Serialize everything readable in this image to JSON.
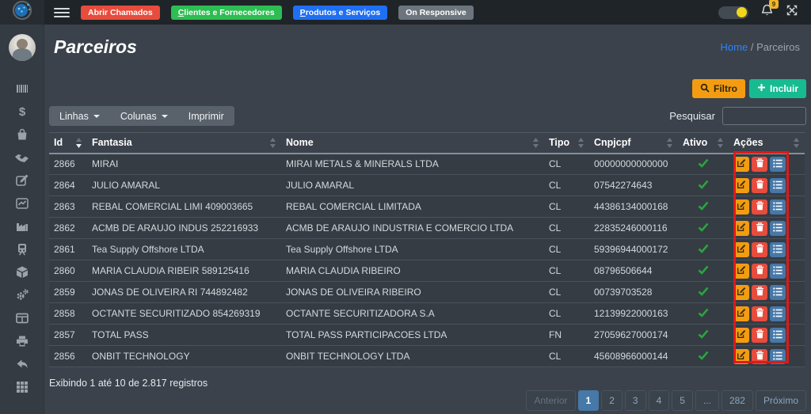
{
  "colors": {
    "warning": "#f39c12",
    "danger": "#e74c3c",
    "success": "#17bb91",
    "primary_blue": "#1f6ff2",
    "nav_green": "#2dbd52",
    "nav_gray": "#6c757d",
    "active_page": "#4678a8",
    "check_green": "#28a53d",
    "annotation_red": "#dd1a1a",
    "toggle_knob": "#f2d61b"
  },
  "topbar": {
    "nav_buttons": [
      {
        "label": "Abrir Chamados",
        "color": "#e74c3c"
      },
      {
        "label": "Clientes e Fornecedores",
        "color": "#2dbd52"
      },
      {
        "label": "Produtos e Serviços",
        "color": "#1f6ff2"
      },
      {
        "label": "On Responsive",
        "color": "#6c757d"
      }
    ],
    "notification_count": "9",
    "icons": [
      "hamburger-icon",
      "logo-orbit-icon",
      "theme-toggle",
      "bell-icon",
      "expand-icon"
    ]
  },
  "sidebar": {
    "icons": [
      "barcode",
      "dollar-sign",
      "shopping-bag",
      "handshake",
      "edit",
      "chart-line",
      "industry",
      "train",
      "box",
      "cogs",
      "table",
      "printer",
      "reply",
      "th-grid"
    ]
  },
  "page": {
    "title": "Parceiros",
    "breadcrumb_home": "Home",
    "breadcrumb_sep": "/",
    "breadcrumb_current": "Parceiros"
  },
  "controls": {
    "filter": "Filtro",
    "add": "Incluir",
    "rows": "Linhas",
    "columns": "Colunas",
    "print": "Imprimir",
    "search_label": "Pesquisar",
    "search_value": ""
  },
  "table": {
    "columns": [
      "Id",
      "Fantasia",
      "Nome",
      "Tipo",
      "Cnpjcpf",
      "Ativo",
      "Ações"
    ],
    "sorted_column": "Id",
    "sort_direction": "desc",
    "rows": [
      {
        "id": "2866",
        "fantasia": "MIRAI",
        "nome": "MIRAI METALS & MINERALS LTDA",
        "tipo": "CL",
        "cnpjcpf": "00000000000000",
        "ativo": true
      },
      {
        "id": "2864",
        "fantasia": "JULIO AMARAL",
        "nome": "JULIO AMARAL",
        "tipo": "CL",
        "cnpjcpf": "07542274643",
        "ativo": true
      },
      {
        "id": "2863",
        "fantasia": "REBAL COMERCIAL LIMI 409003665",
        "nome": "REBAL COMERCIAL LIMITADA",
        "tipo": "CL",
        "cnpjcpf": "44386134000168",
        "ativo": true
      },
      {
        "id": "2862",
        "fantasia": "ACMB DE ARAUJO INDUS 252216933",
        "nome": "ACMB DE ARAUJO INDUSTRIA E COMERCIO LTDA",
        "tipo": "CL",
        "cnpjcpf": "22835246000116",
        "ativo": true
      },
      {
        "id": "2861",
        "fantasia": "Tea Supply Offshore LTDA",
        "nome": "Tea Supply Offshore LTDA",
        "tipo": "CL",
        "cnpjcpf": "59396944000172",
        "ativo": true
      },
      {
        "id": "2860",
        "fantasia": "MARIA CLAUDIA RIBEIR 589125416",
        "nome": "MARIA CLAUDIA RIBEIRO",
        "tipo": "CL",
        "cnpjcpf": "08796506644",
        "ativo": true
      },
      {
        "id": "2859",
        "fantasia": "JONAS DE OLIVEIRA RI 744892482",
        "nome": "JONAS DE OLIVEIRA RIBEIRO",
        "tipo": "CL",
        "cnpjcpf": "00739703528",
        "ativo": true
      },
      {
        "id": "2858",
        "fantasia": "OCTANTE SECURITIZADO 854269319",
        "nome": "OCTANTE SECURITIZADORA S.A",
        "tipo": "CL",
        "cnpjcpf": "12139922000163",
        "ativo": true
      },
      {
        "id": "2857",
        "fantasia": "TOTAL PASS",
        "nome": "TOTAL PASS PARTICIPACOES LTDA",
        "tipo": "FN",
        "cnpjcpf": "27059627000174",
        "ativo": true
      },
      {
        "id": "2856",
        "fantasia": "ONBIT TECHNOLOGY",
        "nome": "ONBIT TECHNOLOGY LTDA",
        "tipo": "CL",
        "cnpjcpf": "45608966000144",
        "ativo": true
      }
    ],
    "row_actions": [
      "edit",
      "delete",
      "details"
    ]
  },
  "footer": {
    "summary": "Exibindo 1 até 10 de 2.817 registros"
  },
  "pagination": {
    "prev_label": "Anterior",
    "pages": [
      "1",
      "2",
      "3",
      "4",
      "5",
      "...",
      "282"
    ],
    "active_page": "1",
    "next_label": "Próximo"
  }
}
